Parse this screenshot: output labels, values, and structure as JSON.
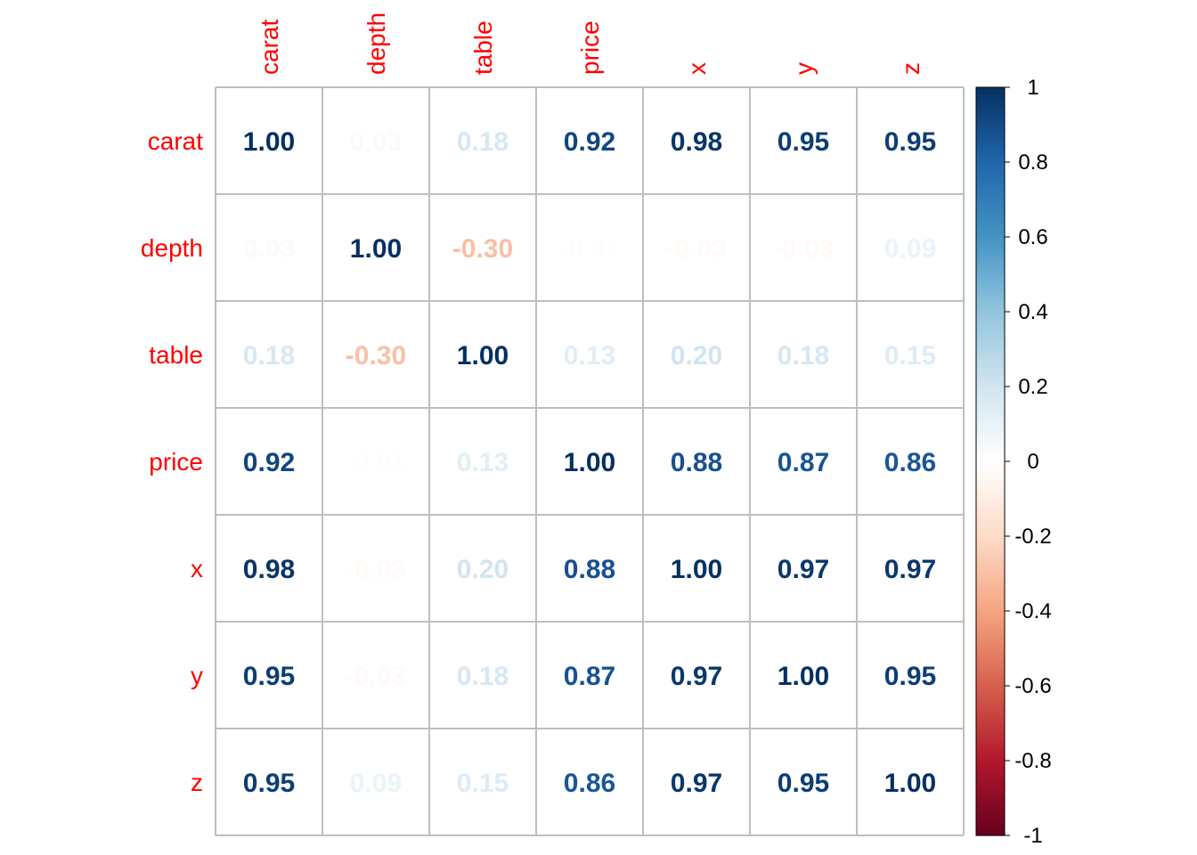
{
  "chart_data": {
    "type": "heatmap",
    "variables": [
      "carat",
      "depth",
      "table",
      "price",
      "x",
      "y",
      "z"
    ],
    "matrix": [
      [
        1.0,
        0.03,
        0.18,
        0.92,
        0.98,
        0.95,
        0.95
      ],
      [
        0.03,
        1.0,
        -0.3,
        -0.01,
        -0.03,
        -0.03,
        0.09
      ],
      [
        0.18,
        -0.3,
        1.0,
        0.13,
        0.2,
        0.18,
        0.15
      ],
      [
        0.92,
        -0.01,
        0.13,
        1.0,
        0.88,
        0.87,
        0.86
      ],
      [
        0.98,
        -0.03,
        0.2,
        0.88,
        1.0,
        0.97,
        0.97
      ],
      [
        0.95,
        -0.03,
        0.18,
        0.87,
        0.97,
        1.0,
        0.95
      ],
      [
        0.95,
        0.09,
        0.15,
        0.86,
        0.97,
        0.95,
        1.0
      ]
    ],
    "colorbar": {
      "range": [
        -1,
        1
      ],
      "ticks": [
        1,
        0.8,
        0.6,
        0.4,
        0.2,
        0,
        -0.2,
        -0.4,
        -0.6,
        -0.8,
        -1
      ],
      "tick_labels": [
        "1",
        "0.8",
        "0.6",
        "0.4",
        "0.2",
        "0",
        "-0.2",
        "-0.4",
        "-0.6",
        "-0.8",
        "-1"
      ]
    },
    "label_color": "#ff0000",
    "grid_color": "#bebebe",
    "palette": [
      "#67001f",
      "#b2182b",
      "#d6604d",
      "#f4a582",
      "#fddbc7",
      "#ffffff",
      "#d1e5f0",
      "#92c5de",
      "#4393c3",
      "#2166ac",
      "#053061"
    ]
  }
}
